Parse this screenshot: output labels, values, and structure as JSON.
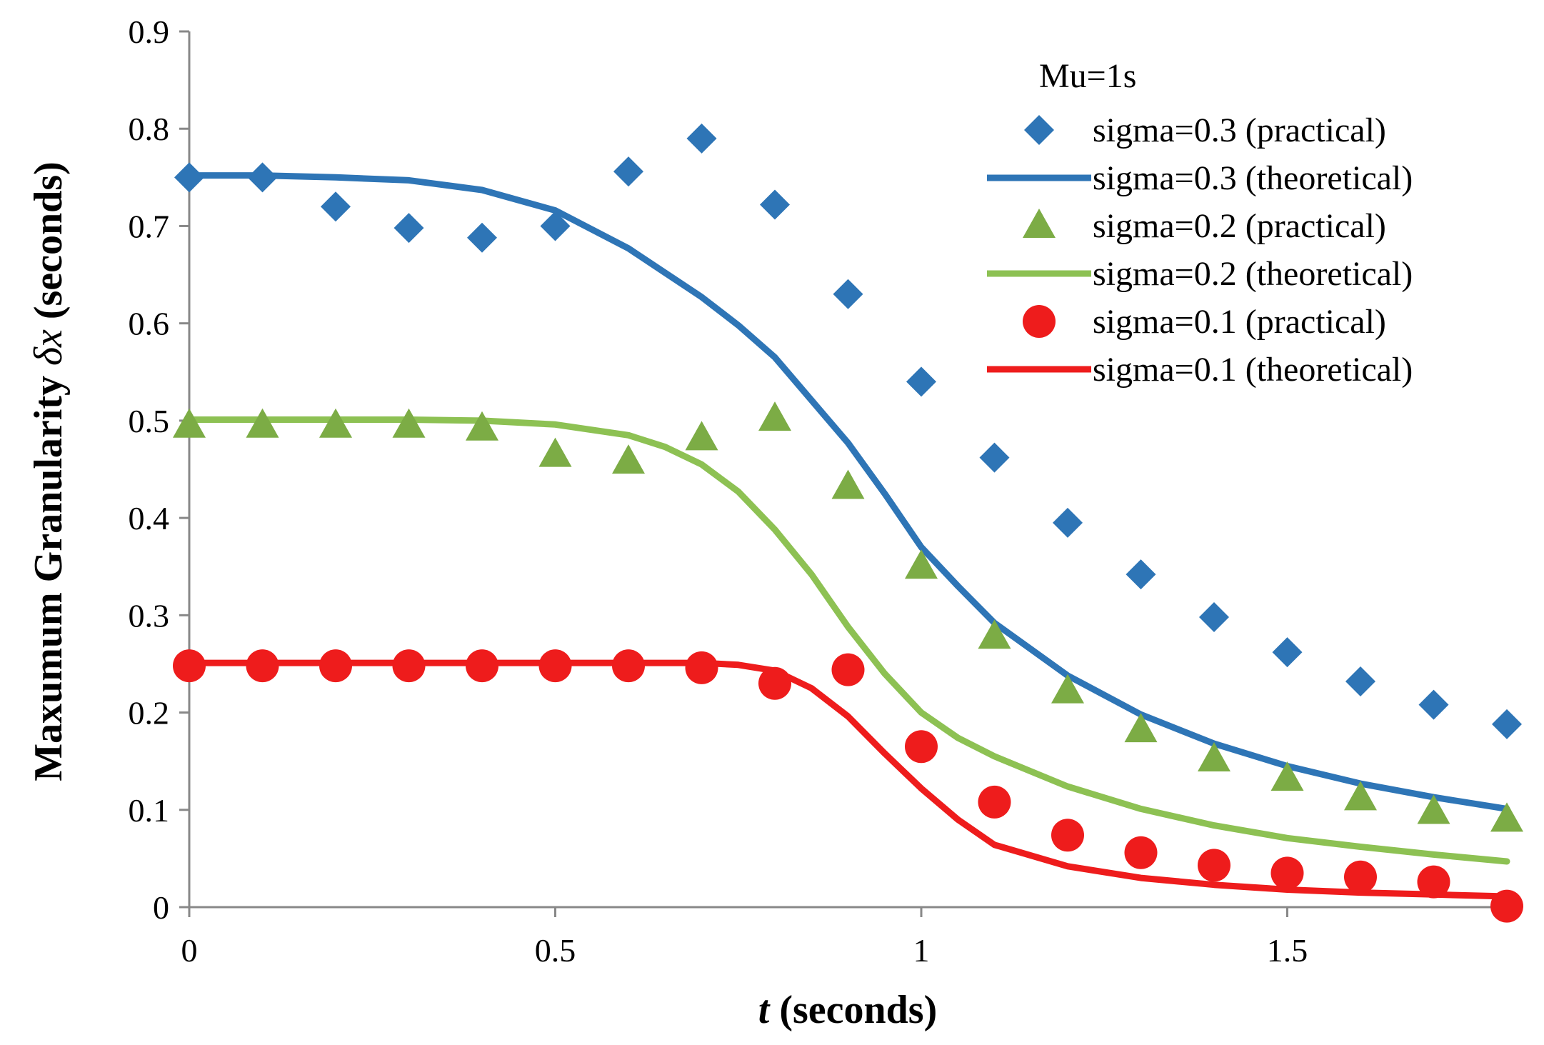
{
  "chart_data": {
    "type": "scatter",
    "title": "",
    "xlabel_italic": "t",
    "xlabel_rest": " (seconds)",
    "ylabel_part1": "Maxumum Granularity ",
    "ylabel_italic": "δx",
    "ylabel_part2": " (seconds)",
    "xlim": [
      0,
      1.8
    ],
    "ylim": [
      0,
      0.9
    ],
    "x_ticks": [
      0,
      0.5,
      1,
      1.5
    ],
    "x_tick_labels": [
      "0",
      "0.5",
      "1",
      "1.5"
    ],
    "y_ticks": [
      0,
      0.1,
      0.2,
      0.3,
      0.4,
      0.5,
      0.6,
      0.7,
      0.8,
      0.9
    ],
    "y_tick_labels": [
      "0",
      "0.1",
      "0.2",
      "0.3",
      "0.4",
      "0.5",
      "0.6",
      "0.7",
      "0.8",
      "0.9"
    ],
    "grid": false,
    "legend_position": "top-right",
    "legend_title": "Mu=1s",
    "series": [
      {
        "name": "sigma=0.3 (practical)",
        "kind": "scatter",
        "marker": "diamond",
        "color": "#2e75b6",
        "x": [
          0,
          0.1,
          0.2,
          0.3,
          0.4,
          0.5,
          0.6,
          0.7,
          0.8,
          0.9,
          1.0,
          1.1,
          1.2,
          1.3,
          1.4,
          1.5,
          1.6,
          1.7,
          1.8
        ],
        "y": [
          0.75,
          0.75,
          0.72,
          0.698,
          0.688,
          0.7,
          0.756,
          0.79,
          0.722,
          0.63,
          0.54,
          0.462,
          0.395,
          0.342,
          0.298,
          0.262,
          0.232,
          0.208,
          0.188
        ]
      },
      {
        "name": "sigma=0.3 (theoretical)",
        "kind": "line",
        "color": "#2e75b6",
        "x": [
          0,
          0.1,
          0.2,
          0.3,
          0.4,
          0.5,
          0.6,
          0.7,
          0.75,
          0.8,
          0.85,
          0.9,
          0.95,
          1.0,
          1.05,
          1.1,
          1.2,
          1.3,
          1.4,
          1.5,
          1.6,
          1.7,
          1.8
        ],
        "y": [
          0.752,
          0.752,
          0.75,
          0.747,
          0.737,
          0.716,
          0.677,
          0.627,
          0.598,
          0.565,
          0.521,
          0.477,
          0.425,
          0.37,
          0.33,
          0.292,
          0.238,
          0.198,
          0.168,
          0.145,
          0.127,
          0.113,
          0.101
        ]
      },
      {
        "name": "sigma=0.2 (practical)",
        "kind": "scatter",
        "marker": "triangle",
        "color": "#7cac45",
        "x": [
          0,
          0.1,
          0.2,
          0.3,
          0.4,
          0.5,
          0.6,
          0.7,
          0.8,
          0.9,
          1.0,
          1.1,
          1.2,
          1.3,
          1.4,
          1.5,
          1.6,
          1.7,
          1.8
        ],
        "y": [
          0.495,
          0.495,
          0.495,
          0.495,
          0.492,
          0.465,
          0.458,
          0.482,
          0.502,
          0.432,
          0.35,
          0.278,
          0.222,
          0.182,
          0.152,
          0.132,
          0.112,
          0.098,
          0.09
        ]
      },
      {
        "name": "sigma=0.2 (theoretical)",
        "kind": "line",
        "color": "#8dc153",
        "x": [
          0,
          0.1,
          0.2,
          0.3,
          0.4,
          0.5,
          0.6,
          0.65,
          0.7,
          0.75,
          0.8,
          0.85,
          0.9,
          0.95,
          1.0,
          1.05,
          1.1,
          1.2,
          1.3,
          1.4,
          1.5,
          1.6,
          1.7,
          1.8
        ],
        "y": [
          0.501,
          0.501,
          0.501,
          0.501,
          0.5,
          0.496,
          0.485,
          0.473,
          0.455,
          0.427,
          0.388,
          0.342,
          0.288,
          0.24,
          0.2,
          0.174,
          0.155,
          0.124,
          0.101,
          0.084,
          0.071,
          0.062,
          0.054,
          0.047
        ]
      },
      {
        "name": "sigma=0.1 (practical)",
        "kind": "scatter",
        "marker": "circle",
        "color": "#ee1c1c",
        "x": [
          0,
          0.1,
          0.2,
          0.3,
          0.4,
          0.5,
          0.6,
          0.7,
          0.8,
          0.9,
          1.0,
          1.1,
          1.2,
          1.3,
          1.4,
          1.5,
          1.6,
          1.7,
          1.8
        ],
        "y": [
          0.248,
          0.248,
          0.248,
          0.248,
          0.248,
          0.248,
          0.248,
          0.246,
          0.23,
          0.244,
          0.165,
          0.108,
          0.074,
          0.056,
          0.043,
          0.035,
          0.031,
          0.026,
          0.001
        ]
      },
      {
        "name": "sigma=0.1 (theoretical)",
        "kind": "line",
        "color": "#ee1c1c",
        "x": [
          0,
          0.1,
          0.2,
          0.3,
          0.4,
          0.5,
          0.6,
          0.7,
          0.75,
          0.8,
          0.85,
          0.9,
          0.95,
          1.0,
          1.05,
          1.1,
          1.2,
          1.3,
          1.4,
          1.5,
          1.6,
          1.7,
          1.8
        ],
        "y": [
          0.251,
          0.251,
          0.251,
          0.251,
          0.251,
          0.251,
          0.251,
          0.251,
          0.249,
          0.243,
          0.225,
          0.196,
          0.158,
          0.122,
          0.09,
          0.064,
          0.042,
          0.03,
          0.023,
          0.018,
          0.015,
          0.013,
          0.011
        ]
      }
    ]
  }
}
